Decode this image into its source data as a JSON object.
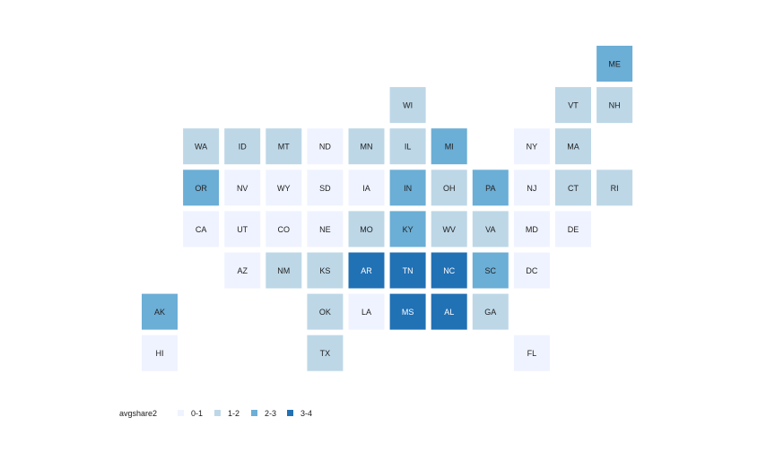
{
  "chart_data": {
    "type": "heatmap",
    "subtype": "tile-grid-map",
    "title": "",
    "fill_variable": "avgshare2",
    "categories": [
      "0-1",
      "1-2",
      "2-3",
      "3-4"
    ],
    "colors": {
      "0-1": "#eff3ff",
      "1-2": "#bdd7e7",
      "2-3": "#6baed6",
      "3-4": "#2171b5"
    },
    "grid": {
      "columns": 12,
      "rows": 8
    },
    "legend": {
      "title": "avgshare2",
      "position": "bottom-left",
      "labels": [
        "0-1",
        "1-2",
        "2-3",
        "3-4"
      ]
    },
    "states": [
      {
        "state": "ME",
        "col": 12,
        "row": 1,
        "category": "2-3"
      },
      {
        "state": "WI",
        "col": 7,
        "row": 2,
        "category": "1-2"
      },
      {
        "state": "VT",
        "col": 11,
        "row": 2,
        "category": "1-2"
      },
      {
        "state": "NH",
        "col": 12,
        "row": 2,
        "category": "1-2"
      },
      {
        "state": "WA",
        "col": 2,
        "row": 3,
        "category": "1-2"
      },
      {
        "state": "ID",
        "col": 3,
        "row": 3,
        "category": "1-2"
      },
      {
        "state": "MT",
        "col": 4,
        "row": 3,
        "category": "1-2"
      },
      {
        "state": "ND",
        "col": 5,
        "row": 3,
        "category": "0-1"
      },
      {
        "state": "MN",
        "col": 6,
        "row": 3,
        "category": "1-2"
      },
      {
        "state": "IL",
        "col": 7,
        "row": 3,
        "category": "1-2"
      },
      {
        "state": "MI",
        "col": 8,
        "row": 3,
        "category": "2-3"
      },
      {
        "state": "NY",
        "col": 10,
        "row": 3,
        "category": "0-1"
      },
      {
        "state": "MA",
        "col": 11,
        "row": 3,
        "category": "1-2"
      },
      {
        "state": "OR",
        "col": 2,
        "row": 4,
        "category": "2-3"
      },
      {
        "state": "NV",
        "col": 3,
        "row": 4,
        "category": "0-1"
      },
      {
        "state": "WY",
        "col": 4,
        "row": 4,
        "category": "0-1"
      },
      {
        "state": "SD",
        "col": 5,
        "row": 4,
        "category": "0-1"
      },
      {
        "state": "IA",
        "col": 6,
        "row": 4,
        "category": "0-1"
      },
      {
        "state": "IN",
        "col": 7,
        "row": 4,
        "category": "2-3"
      },
      {
        "state": "OH",
        "col": 8,
        "row": 4,
        "category": "1-2"
      },
      {
        "state": "PA",
        "col": 9,
        "row": 4,
        "category": "2-3"
      },
      {
        "state": "NJ",
        "col": 10,
        "row": 4,
        "category": "0-1"
      },
      {
        "state": "CT",
        "col": 11,
        "row": 4,
        "category": "1-2"
      },
      {
        "state": "RI",
        "col": 12,
        "row": 4,
        "category": "1-2"
      },
      {
        "state": "CA",
        "col": 2,
        "row": 5,
        "category": "0-1"
      },
      {
        "state": "UT",
        "col": 3,
        "row": 5,
        "category": "0-1"
      },
      {
        "state": "CO",
        "col": 4,
        "row": 5,
        "category": "0-1"
      },
      {
        "state": "NE",
        "col": 5,
        "row": 5,
        "category": "0-1"
      },
      {
        "state": "MO",
        "col": 6,
        "row": 5,
        "category": "1-2"
      },
      {
        "state": "KY",
        "col": 7,
        "row": 5,
        "category": "2-3"
      },
      {
        "state": "WV",
        "col": 8,
        "row": 5,
        "category": "1-2"
      },
      {
        "state": "VA",
        "col": 9,
        "row": 5,
        "category": "1-2"
      },
      {
        "state": "MD",
        "col": 10,
        "row": 5,
        "category": "0-1"
      },
      {
        "state": "DE",
        "col": 11,
        "row": 5,
        "category": "0-1"
      },
      {
        "state": "AZ",
        "col": 3,
        "row": 6,
        "category": "0-1"
      },
      {
        "state": "NM",
        "col": 4,
        "row": 6,
        "category": "1-2"
      },
      {
        "state": "KS",
        "col": 5,
        "row": 6,
        "category": "1-2"
      },
      {
        "state": "AR",
        "col": 6,
        "row": 6,
        "category": "3-4"
      },
      {
        "state": "TN",
        "col": 7,
        "row": 6,
        "category": "3-4"
      },
      {
        "state": "NC",
        "col": 8,
        "row": 6,
        "category": "3-4"
      },
      {
        "state": "SC",
        "col": 9,
        "row": 6,
        "category": "2-3"
      },
      {
        "state": "DC",
        "col": 10,
        "row": 6,
        "category": "0-1"
      },
      {
        "state": "AK",
        "col": 1,
        "row": 7,
        "category": "2-3"
      },
      {
        "state": "OK",
        "col": 5,
        "row": 7,
        "category": "1-2"
      },
      {
        "state": "LA",
        "col": 6,
        "row": 7,
        "category": "0-1"
      },
      {
        "state": "MS",
        "col": 7,
        "row": 7,
        "category": "3-4"
      },
      {
        "state": "AL",
        "col": 8,
        "row": 7,
        "category": "3-4"
      },
      {
        "state": "GA",
        "col": 9,
        "row": 7,
        "category": "1-2"
      },
      {
        "state": "HI",
        "col": 1,
        "row": 8,
        "category": "0-1"
      },
      {
        "state": "TX",
        "col": 5,
        "row": 8,
        "category": "1-2"
      },
      {
        "state": "FL",
        "col": 10,
        "row": 8,
        "category": "0-1"
      }
    ]
  }
}
